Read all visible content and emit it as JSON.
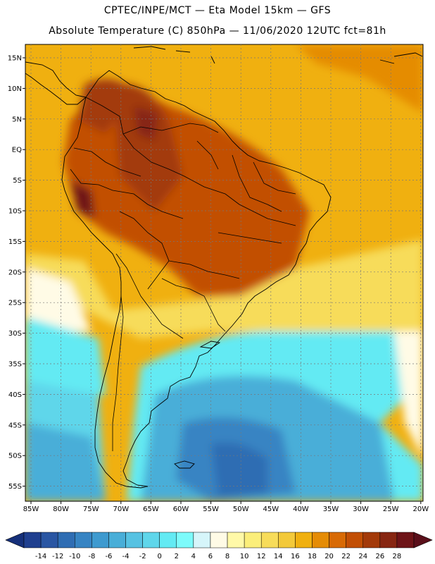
{
  "header": {
    "title_line1": "CPTEC/INPE/MCT —  Eta Model 15km — GFS",
    "title_line2": "Absolute Temperature (C) 850hPa — 11/06/2020 12UTC fct=81h"
  },
  "axes": {
    "lat_labels": [
      "15N",
      "10N",
      "5N",
      "EQ",
      "5S",
      "10S",
      "15S",
      "20S",
      "25S",
      "30S",
      "35S",
      "40S",
      "45S",
      "50S",
      "55S"
    ],
    "lon_labels": [
      "85W",
      "80W",
      "75W",
      "70W",
      "65W",
      "60W",
      "55W",
      "50W",
      "45W",
      "40W",
      "35W",
      "30W",
      "25W",
      "20W"
    ]
  },
  "colorbar": {
    "tick_labels": [
      "-14",
      "-12",
      "-10",
      "-8",
      "-6",
      "-4",
      "-2",
      "0",
      "2",
      "4",
      "6",
      "8",
      "10",
      "12",
      "14",
      "16",
      "18",
      "20",
      "22",
      "24",
      "26",
      "28"
    ],
    "colors": [
      "#1f3f8f",
      "#2a56a3",
      "#2f6db3",
      "#3784c3",
      "#3e9acf",
      "#49aed8",
      "#57c2e2",
      "#5fd6ea",
      "#63eaf3",
      "#7dfbfb",
      "#d6f5fa",
      "#fffbe6",
      "#fff9a8",
      "#fbee7a",
      "#f7dc5a",
      "#f3c93a",
      "#f0b010",
      "#e58c06",
      "#d86a05",
      "#c24f05",
      "#a33a0a",
      "#872612",
      "#6e1418"
    ],
    "under_color": "#16307a",
    "over_color": "#5a0f1a"
  },
  "field_colors": {
    "ocean_warm": "#f0b010",
    "ocean_pale": "#f7dc5a",
    "land_hot": "#c24f05",
    "land_hottest": "#872612",
    "cold_cyan": "#5fd6ea",
    "cold_blue": "#3e9acf",
    "cold_deep": "#2f6db3"
  }
}
